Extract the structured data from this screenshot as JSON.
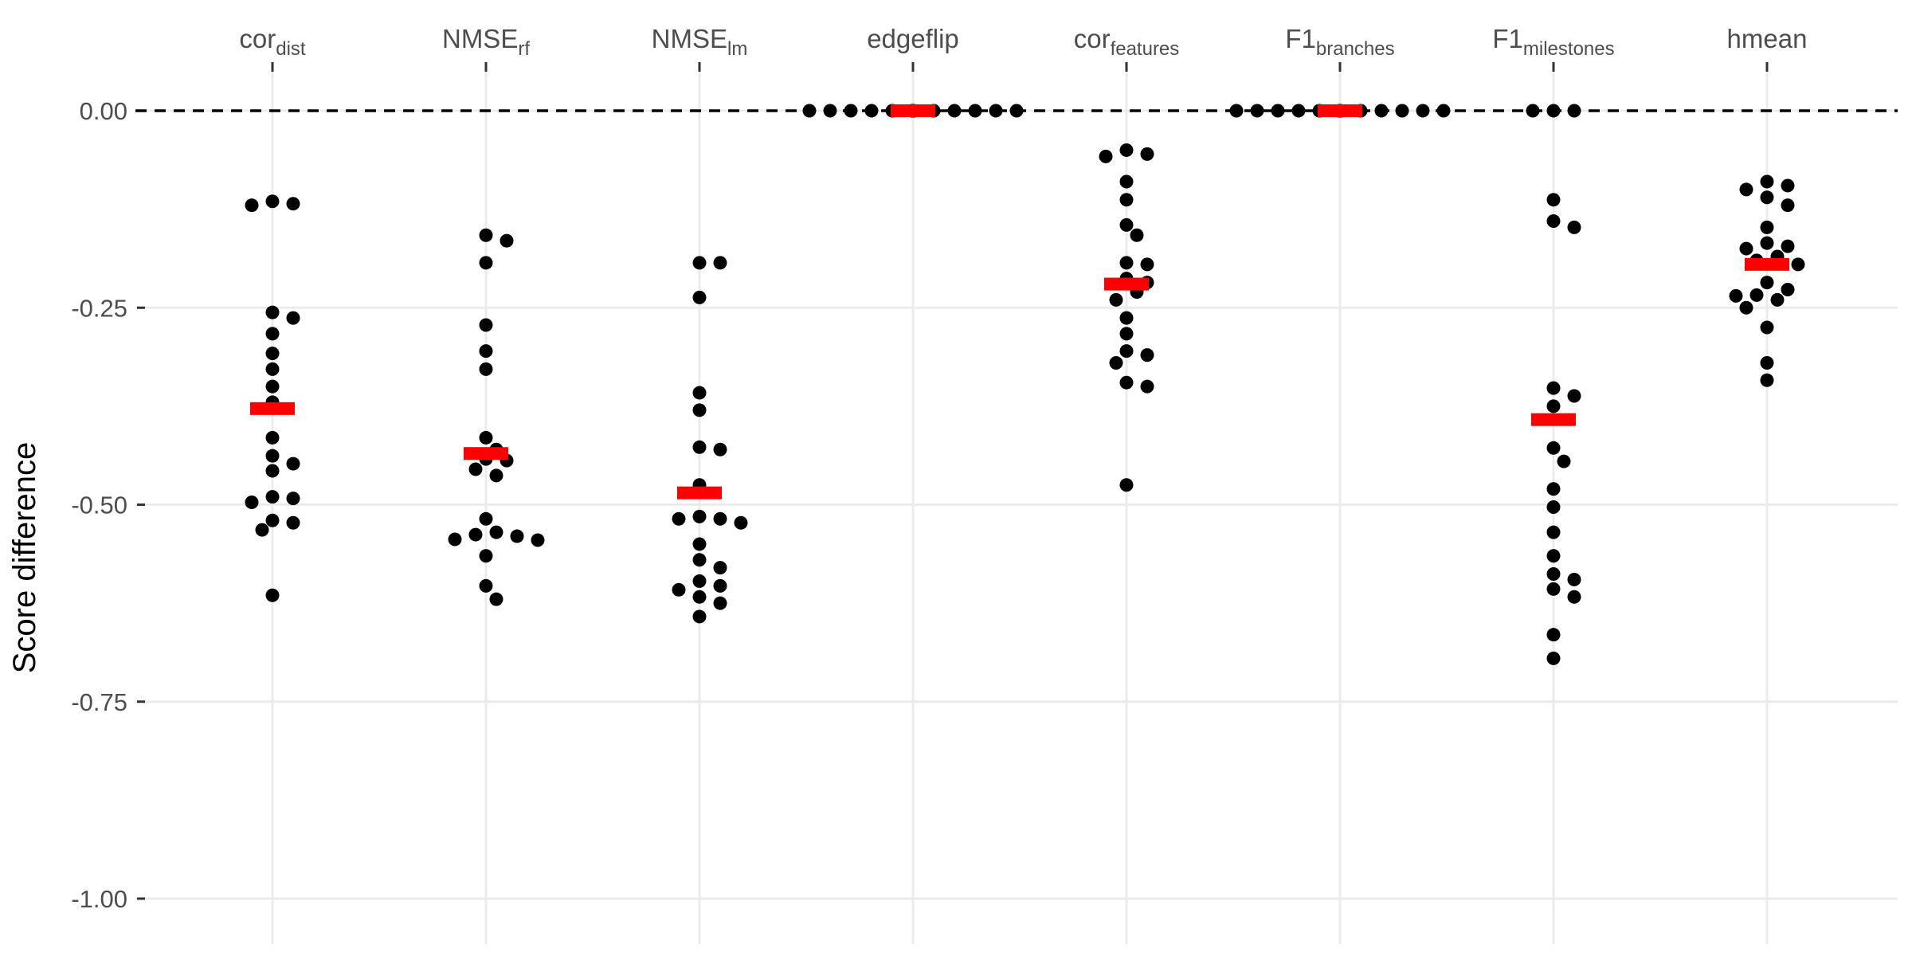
{
  "chart_data": {
    "type": "scatter",
    "ylabel": "Score difference",
    "xlabel": "",
    "title": "",
    "ylim": [
      -1.0,
      0.0
    ],
    "yticks": [
      {
        "value": 0.0,
        "label": "0.00"
      },
      {
        "value": -0.25,
        "label": "-0.25"
      },
      {
        "value": -0.5,
        "label": "-0.50"
      },
      {
        "value": -0.75,
        "label": "-0.75"
      },
      {
        "value": -1.0,
        "label": "-1.00"
      }
    ],
    "reference_line": {
      "value": 0.0,
      "style": "dashed"
    },
    "grid": true,
    "x_axis_position": "top",
    "point_color": "#000000",
    "summary_color": "#ff0000",
    "summary": "mean",
    "categories": [
      {
        "base": "cor",
        "sub": "dist",
        "mean": -0.378,
        "points": [
          -0.118,
          -0.115,
          -0.12,
          -0.256,
          -0.263,
          -0.283,
          -0.308,
          -0.328,
          -0.35,
          -0.37,
          -0.415,
          -0.438,
          -0.448,
          -0.457,
          -0.492,
          -0.497,
          -0.49,
          -0.52,
          -0.523,
          -0.532,
          -0.615
        ]
      },
      {
        "base": "NMSE",
        "sub": "rf",
        "mean": -0.435,
        "points": [
          -0.158,
          -0.165,
          -0.193,
          -0.272,
          -0.305,
          -0.328,
          -0.415,
          -0.43,
          -0.442,
          -0.444,
          -0.455,
          -0.463,
          -0.518,
          -0.535,
          -0.538,
          -0.54,
          -0.544,
          -0.545,
          -0.565,
          -0.603,
          -0.62
        ]
      },
      {
        "base": "NMSE",
        "sub": "lm",
        "mean": -0.485,
        "points": [
          -0.193,
          -0.193,
          -0.237,
          -0.358,
          -0.38,
          -0.427,
          -0.43,
          -0.475,
          -0.515,
          -0.518,
          -0.518,
          -0.523,
          -0.55,
          -0.57,
          -0.58,
          -0.597,
          -0.603,
          -0.608,
          -0.617,
          -0.625,
          -0.642
        ]
      },
      {
        "base": "edgeflip",
        "sub": "",
        "mean": 0.0,
        "points": [
          0,
          0,
          0,
          0,
          0,
          0,
          0,
          0,
          0,
          0,
          0,
          0,
          0,
          0,
          0,
          0,
          0,
          0,
          0,
          0,
          0
        ]
      },
      {
        "base": "cor",
        "sub": "features",
        "mean": -0.22,
        "points": [
          -0.05,
          -0.055,
          -0.058,
          -0.09,
          -0.113,
          -0.145,
          -0.158,
          -0.193,
          -0.195,
          -0.213,
          -0.218,
          -0.23,
          -0.24,
          -0.263,
          -0.283,
          -0.305,
          -0.31,
          -0.32,
          -0.345,
          -0.35,
          -0.475
        ]
      },
      {
        "base": "F1",
        "sub": "branches",
        "mean": 0.0,
        "points": [
          0,
          0,
          0,
          0,
          0,
          0,
          0,
          0,
          0,
          0,
          0,
          0,
          0,
          0,
          0,
          0,
          0,
          0,
          0,
          0,
          0
        ]
      },
      {
        "base": "F1",
        "sub": "milestones",
        "mean": -0.392,
        "points": [
          0,
          0,
          0,
          -0.113,
          -0.14,
          -0.148,
          -0.352,
          -0.362,
          -0.375,
          -0.428,
          -0.445,
          -0.48,
          -0.503,
          -0.535,
          -0.565,
          -0.588,
          -0.595,
          -0.607,
          -0.617,
          -0.665,
          -0.695
        ]
      },
      {
        "base": "hmean",
        "sub": "",
        "mean": -0.195,
        "points": [
          -0.09,
          -0.095,
          -0.1,
          -0.11,
          -0.12,
          -0.148,
          -0.168,
          -0.172,
          -0.175,
          -0.185,
          -0.19,
          -0.195,
          -0.218,
          -0.227,
          -0.234,
          -0.235,
          -0.24,
          -0.25,
          -0.275,
          -0.32,
          -0.342
        ]
      }
    ]
  }
}
